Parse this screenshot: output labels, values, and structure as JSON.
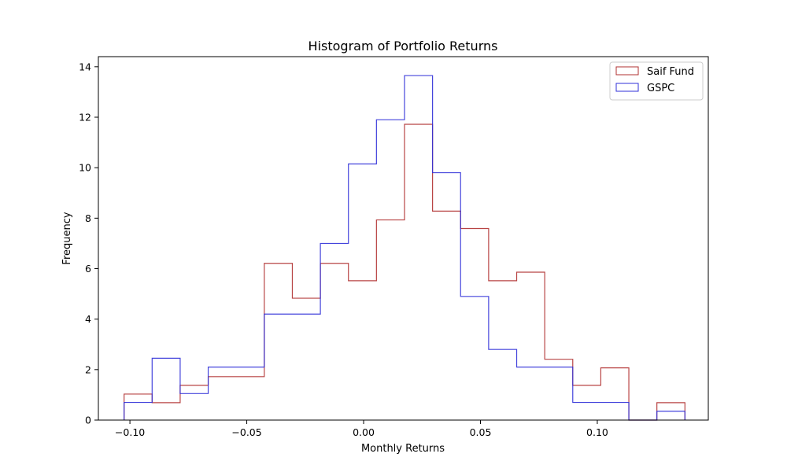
{
  "chart_data": {
    "type": "histogram-step",
    "title": "Histogram of Portfolio Returns",
    "xlabel": "Monthly Returns",
    "ylabel": "Frequency",
    "xlim": [
      -0.1135,
      0.1475
    ],
    "ylim": [
      0,
      14.4
    ],
    "xticks": [
      -0.1,
      -0.05,
      0.0,
      0.05,
      0.1
    ],
    "xtick_labels": [
      "−0.10",
      "−0.05",
      "0.00",
      "0.05",
      "0.10"
    ],
    "yticks": [
      0,
      2,
      4,
      6,
      8,
      10,
      12,
      14
    ],
    "ytick_labels": [
      "0",
      "2",
      "4",
      "6",
      "8",
      "10",
      "12",
      "14"
    ],
    "legend_position": "top-right",
    "bin_edges": [
      -0.1025,
      -0.0905,
      -0.0785,
      -0.0665,
      -0.0545,
      -0.0425,
      -0.0305,
      -0.0185,
      -0.0065,
      0.0055,
      0.0175,
      0.0295,
      0.0415,
      0.0535,
      0.0655,
      0.0775,
      0.0895,
      0.1015,
      0.1135,
      0.1255,
      0.1375
    ],
    "series": [
      {
        "name": "Saif Fund",
        "color": "#b03030",
        "values": [
          1.03,
          0.69,
          1.38,
          1.72,
          1.72,
          6.21,
          4.83,
          6.21,
          5.52,
          7.93,
          11.72,
          8.28,
          7.59,
          5.52,
          5.86,
          2.41,
          1.38,
          2.07,
          0.0,
          0.69
        ]
      },
      {
        "name": "GSPC",
        "color": "#3030d8",
        "values": [
          0.7,
          2.45,
          1.05,
          2.1,
          2.1,
          4.2,
          4.2,
          7.0,
          10.15,
          11.9,
          13.65,
          9.8,
          4.9,
          2.8,
          2.1,
          2.1,
          0.7,
          0.7,
          0.0,
          0.35
        ]
      }
    ]
  }
}
